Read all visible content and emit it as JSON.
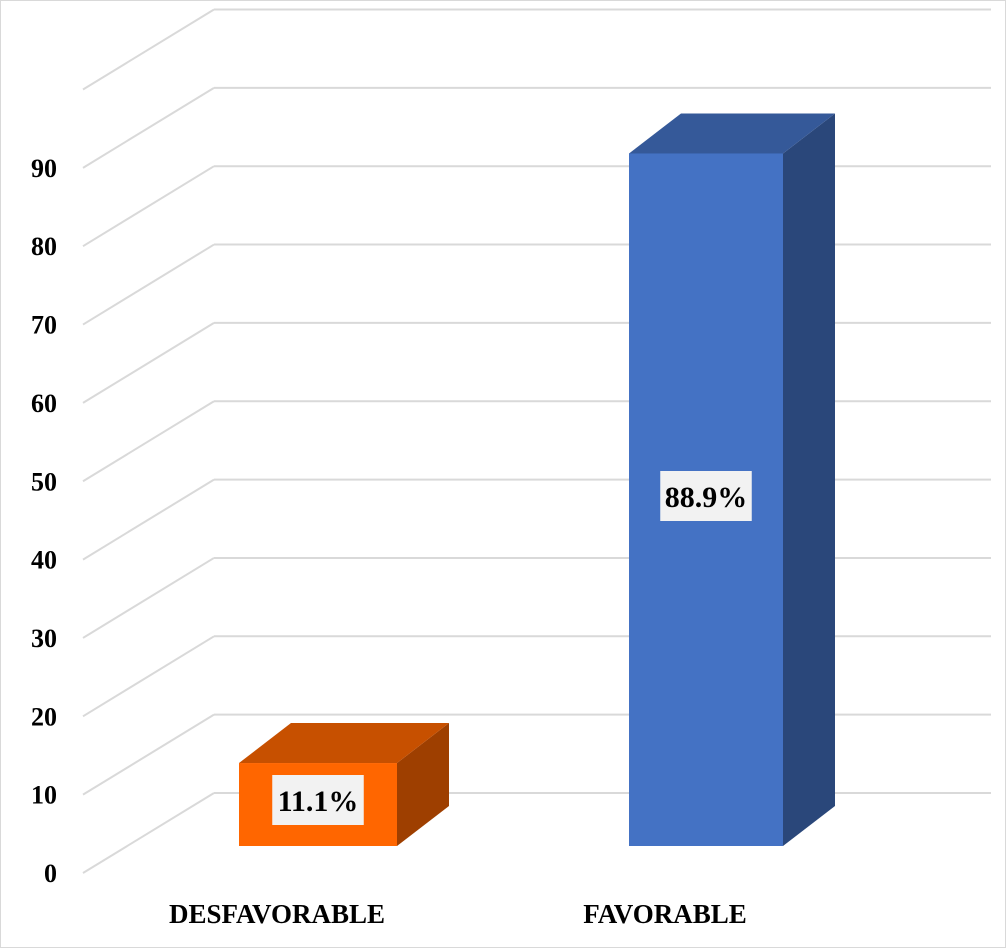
{
  "chart_data": {
    "type": "bar",
    "title": "",
    "xlabel": "",
    "ylabel": "",
    "categories": [
      "DESFAVORABLE",
      "FAVORABLE"
    ],
    "values": [
      11.1,
      88.9
    ],
    "data_labels": [
      "11.1%",
      "88.9%"
    ],
    "bar_colors": [
      "#FF6600",
      "#4472C4"
    ],
    "ylim": [
      0,
      100
    ],
    "yticks": [
      0,
      10,
      20,
      30,
      40,
      50,
      60,
      70,
      80,
      90
    ],
    "grid": true,
    "legend": "none",
    "style": "3d-column"
  }
}
